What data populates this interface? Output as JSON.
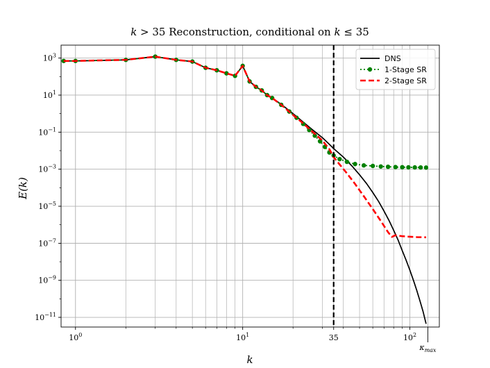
{
  "chart_data": {
    "type": "line",
    "title": "k > 35 Reconstruction, conditional on k ≤ 35",
    "title_parts": {
      "a": "k",
      "b": " > 35 Reconstruction, conditional on ",
      "c": "k",
      "d": " ≤ 35"
    },
    "xlabel": "k",
    "ylabel": "E(k)",
    "xscale": "log",
    "yscale": "log",
    "xlim": [
      0.82,
      150
    ],
    "ylim": [
      3e-12,
      5000
    ],
    "grid": true,
    "legend_position": "top-right",
    "x_ticks": [
      {
        "value": 1,
        "base": "10",
        "exp": "0"
      },
      {
        "value": 10,
        "base": "10",
        "exp": "1"
      },
      {
        "value": 35,
        "text": "35"
      },
      {
        "value": 100,
        "base": "10",
        "exp": "2"
      },
      {
        "value": 128,
        "text": "κmax",
        "sub": "max",
        "main": "κ"
      }
    ],
    "y_ticks": [
      {
        "value": 1000,
        "base": "10",
        "exp": "3"
      },
      {
        "value": 10,
        "base": "10",
        "exp": "1"
      },
      {
        "value": 0.1,
        "base": "10",
        "exp": "−1"
      },
      {
        "value": 0.001,
        "base": "10",
        "exp": "−3"
      },
      {
        "value": 1e-05,
        "base": "10",
        "exp": "−5"
      },
      {
        "value": 1e-07,
        "base": "10",
        "exp": "−7"
      },
      {
        "value": 1e-09,
        "base": "10",
        "exp": "−9"
      },
      {
        "value": 1e-11,
        "base": "10",
        "exp": "−11"
      }
    ],
    "vline": {
      "x": 35,
      "color": "#000000",
      "style": "dashed"
    },
    "series": [
      {
        "name": "DNS",
        "color": "#000000",
        "style": "solid",
        "marker": "none",
        "x": [
          0.85,
          1,
          2,
          3,
          4,
          5,
          6,
          7,
          8,
          9,
          10,
          11,
          12,
          13,
          14,
          15,
          17,
          20,
          23,
          26,
          30,
          33,
          35,
          40,
          45,
          50,
          55,
          60,
          65,
          70,
          75,
          80,
          85,
          90,
          95,
          100,
          105,
          110,
          115,
          120,
          125
        ],
        "y": [
          700,
          700,
          800,
          1200,
          800,
          650,
          300,
          220,
          150,
          110,
          380,
          55,
          28,
          18,
          10,
          7,
          3.2,
          1.0,
          0.35,
          0.14,
          0.05,
          0.022,
          0.013,
          0.0045,
          0.0015,
          0.0005,
          0.00017,
          5.5e-05,
          1.8e-05,
          5.5e-06,
          1.7e-06,
          5e-07,
          1.5e-07,
          4e-08,
          1.2e-08,
          3.5e-09,
          1e-09,
          2.8e-10,
          7.5e-11,
          2e-11,
          4.5e-12
        ]
      },
      {
        "name": "1-Stage SR",
        "color": "#008000",
        "style": "dotted",
        "marker": "circle",
        "x": [
          0.85,
          1,
          2,
          3,
          4,
          5,
          6,
          7,
          8,
          9,
          10,
          11,
          12,
          13,
          14,
          15,
          17,
          19,
          21,
          23,
          25,
          27,
          29,
          31,
          33,
          35,
          38,
          42,
          47,
          53,
          60,
          67,
          74,
          82,
          90,
          98,
          107,
          116,
          125
        ],
        "y": [
          700,
          700,
          800,
          1200,
          800,
          650,
          300,
          220,
          150,
          110,
          380,
          55,
          28,
          18,
          10,
          7,
          3.0,
          1.3,
          0.6,
          0.28,
          0.13,
          0.065,
          0.032,
          0.016,
          0.008,
          0.0055,
          0.0035,
          0.0025,
          0.0019,
          0.0016,
          0.0015,
          0.0014,
          0.00135,
          0.0013,
          0.00128,
          0.00126,
          0.00125,
          0.00124,
          0.00122
        ]
      },
      {
        "name": "2-Stage SR",
        "color": "#ff0000",
        "style": "dashed",
        "marker": "none",
        "x": [
          0.85,
          1,
          2,
          3,
          4,
          5,
          6,
          7,
          8,
          9,
          10,
          11,
          12,
          13,
          14,
          15,
          17,
          20,
          23,
          26,
          30,
          33,
          35,
          38,
          42,
          47,
          53,
          60,
          67,
          74,
          78,
          82,
          90,
          100,
          110,
          125
        ],
        "y": [
          700,
          700,
          800,
          1200,
          800,
          650,
          300,
          220,
          150,
          110,
          380,
          55,
          28,
          18,
          10,
          7,
          3.0,
          0.85,
          0.3,
          0.11,
          0.035,
          0.012,
          0.0045,
          0.0018,
          0.0006,
          0.00016,
          3.5e-05,
          7e-06,
          1.6e-06,
          4e-07,
          2.2e-07,
          2.7e-07,
          2.4e-07,
          2.25e-07,
          2.15e-07,
          2.1e-07
        ]
      }
    ]
  }
}
